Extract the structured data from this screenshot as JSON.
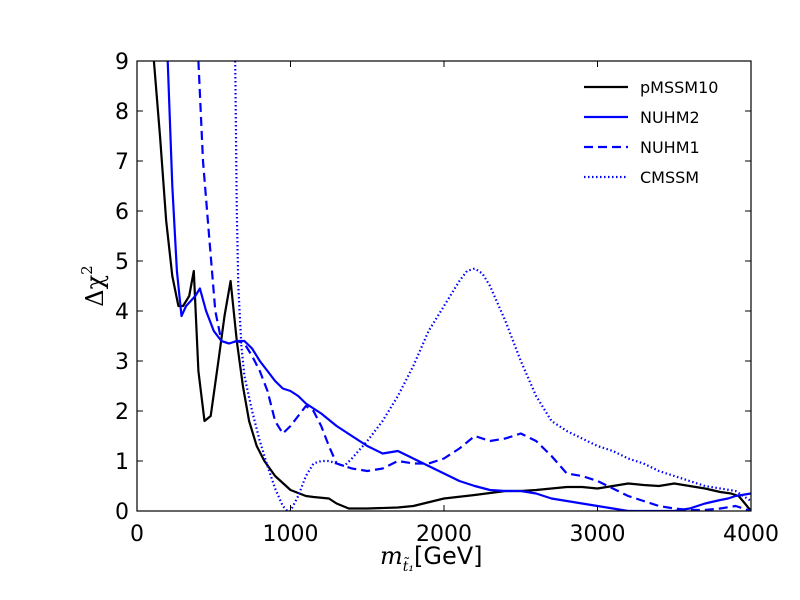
{
  "chart_data": {
    "type": "line",
    "title": "",
    "xlabel_symbol": "m",
    "xlabel_subscript": "t̃₁",
    "xlabel_unit": "[GeV]",
    "ylabel_prefix": "Δχ",
    "ylabel_sup": "2",
    "xlim": [
      0,
      4000
    ],
    "ylim": [
      0,
      9
    ],
    "xticks": [
      0,
      1000,
      2000,
      3000,
      4000
    ],
    "yticks": [
      0,
      1,
      2,
      3,
      4,
      5,
      6,
      7,
      8,
      9
    ],
    "legend_position": "top-right",
    "series": [
      {
        "name": "pMSSM10",
        "color": "#000000",
        "style": "solid",
        "x": [
          110,
          150,
          190,
          230,
          270,
          300,
          340,
          370,
          400,
          440,
          480,
          530,
          570,
          610,
          650,
          690,
          730,
          780,
          830,
          900,
          1000,
          1100,
          1150,
          1250,
          1300,
          1380,
          1500,
          1700,
          1800,
          2000,
          2200,
          2400,
          2500,
          2600,
          2700,
          2800,
          2900,
          3000,
          3100,
          3200,
          3300,
          3400,
          3500,
          3700,
          3800,
          3870,
          3920,
          3960,
          4000
        ],
        "y": [
          9.0,
          7.5,
          5.8,
          4.7,
          4.1,
          4.1,
          4.3,
          4.8,
          2.8,
          1.8,
          1.9,
          3.0,
          3.9,
          4.6,
          3.4,
          2.5,
          1.8,
          1.3,
          1.0,
          0.7,
          0.42,
          0.3,
          0.28,
          0.25,
          0.15,
          0.05,
          0.05,
          0.07,
          0.1,
          0.25,
          0.32,
          0.4,
          0.4,
          0.42,
          0.45,
          0.48,
          0.48,
          0.45,
          0.5,
          0.55,
          0.52,
          0.5,
          0.55,
          0.45,
          0.38,
          0.35,
          0.3,
          0.15,
          0.0
        ]
      },
      {
        "name": "NUHM2",
        "color": "#0000ff",
        "style": "solid",
        "x": [
          200,
          230,
          260,
          290,
          320,
          380,
          410,
          450,
          500,
          550,
          600,
          650,
          700,
          750,
          800,
          850,
          900,
          950,
          1000,
          1050,
          1100,
          1200,
          1300,
          1400,
          1500,
          1600,
          1700,
          1800,
          1900,
          2000,
          2100,
          2200,
          2300,
          2400,
          2500,
          2600,
          2700,
          2800,
          2900,
          3000,
          3100,
          3200,
          3300,
          3400,
          3500,
          3600,
          3700,
          3800,
          3850,
          3900,
          4000
        ],
        "y": [
          9.0,
          6.5,
          4.8,
          3.9,
          4.1,
          4.3,
          4.45,
          4.0,
          3.6,
          3.4,
          3.35,
          3.4,
          3.4,
          3.25,
          3.0,
          2.8,
          2.6,
          2.45,
          2.4,
          2.3,
          2.15,
          1.95,
          1.7,
          1.5,
          1.3,
          1.15,
          1.2,
          1.05,
          0.9,
          0.75,
          0.6,
          0.5,
          0.42,
          0.4,
          0.4,
          0.35,
          0.25,
          0.2,
          0.15,
          0.1,
          0.05,
          0.0,
          0.0,
          0.0,
          0.0,
          0.05,
          0.15,
          0.22,
          0.25,
          0.3,
          0.35
        ]
      },
      {
        "name": "NUHM1",
        "color": "#0000ff",
        "style": "dashed",
        "x": [
          400,
          430,
          470,
          510,
          550,
          600,
          650,
          700,
          750,
          800,
          850,
          900,
          950,
          1000,
          1050,
          1100,
          1150,
          1200,
          1250,
          1300,
          1350,
          1400,
          1500,
          1600,
          1700,
          1800,
          1900,
          2000,
          2100,
          2200,
          2300,
          2400,
          2500,
          2600,
          2700,
          2800,
          2900,
          3000,
          3100,
          3200,
          3300,
          3400,
          3500,
          3600,
          3700,
          3800,
          3900,
          4000
        ],
        "y": [
          9.0,
          7.0,
          5.5,
          4.0,
          3.4,
          3.35,
          3.4,
          3.35,
          3.1,
          2.8,
          2.4,
          1.8,
          1.55,
          1.7,
          1.9,
          2.1,
          2.0,
          1.7,
          1.3,
          0.95,
          0.9,
          0.85,
          0.8,
          0.85,
          1.0,
          0.95,
          0.95,
          1.05,
          1.25,
          1.5,
          1.4,
          1.45,
          1.55,
          1.4,
          1.1,
          0.75,
          0.7,
          0.6,
          0.45,
          0.3,
          0.2,
          0.1,
          0.05,
          0.02,
          0.02,
          0.05,
          0.1,
          0.0
        ]
      },
      {
        "name": "CMSSM",
        "color": "#0000ff",
        "style": "dotted",
        "x": [
          640,
          645,
          650,
          660,
          680,
          700,
          750,
          800,
          850,
          900,
          950,
          980,
          1000,
          1050,
          1100,
          1150,
          1200,
          1250,
          1300,
          1350,
          1400,
          1500,
          1600,
          1700,
          1800,
          1900,
          2000,
          2100,
          2150,
          2200,
          2250,
          2300,
          2400,
          2500,
          2600,
          2700,
          2800,
          2900,
          3000,
          3050,
          3100,
          3200,
          3300,
          3400,
          3500,
          3600,
          3700,
          3800,
          3900,
          4000
        ],
        "y": [
          9.0,
          7.5,
          6.0,
          4.5,
          3.3,
          2.7,
          2.0,
          1.4,
          0.9,
          0.45,
          0.1,
          0.0,
          0.0,
          0.3,
          0.7,
          0.95,
          1.0,
          1.0,
          0.95,
          0.9,
          1.05,
          1.4,
          1.8,
          2.3,
          2.9,
          3.6,
          4.1,
          4.6,
          4.8,
          4.85,
          4.75,
          4.5,
          3.8,
          3.0,
          2.3,
          1.8,
          1.6,
          1.45,
          1.3,
          1.25,
          1.2,
          1.05,
          0.95,
          0.8,
          0.7,
          0.6,
          0.5,
          0.45,
          0.4,
          0.2
        ]
      }
    ]
  }
}
